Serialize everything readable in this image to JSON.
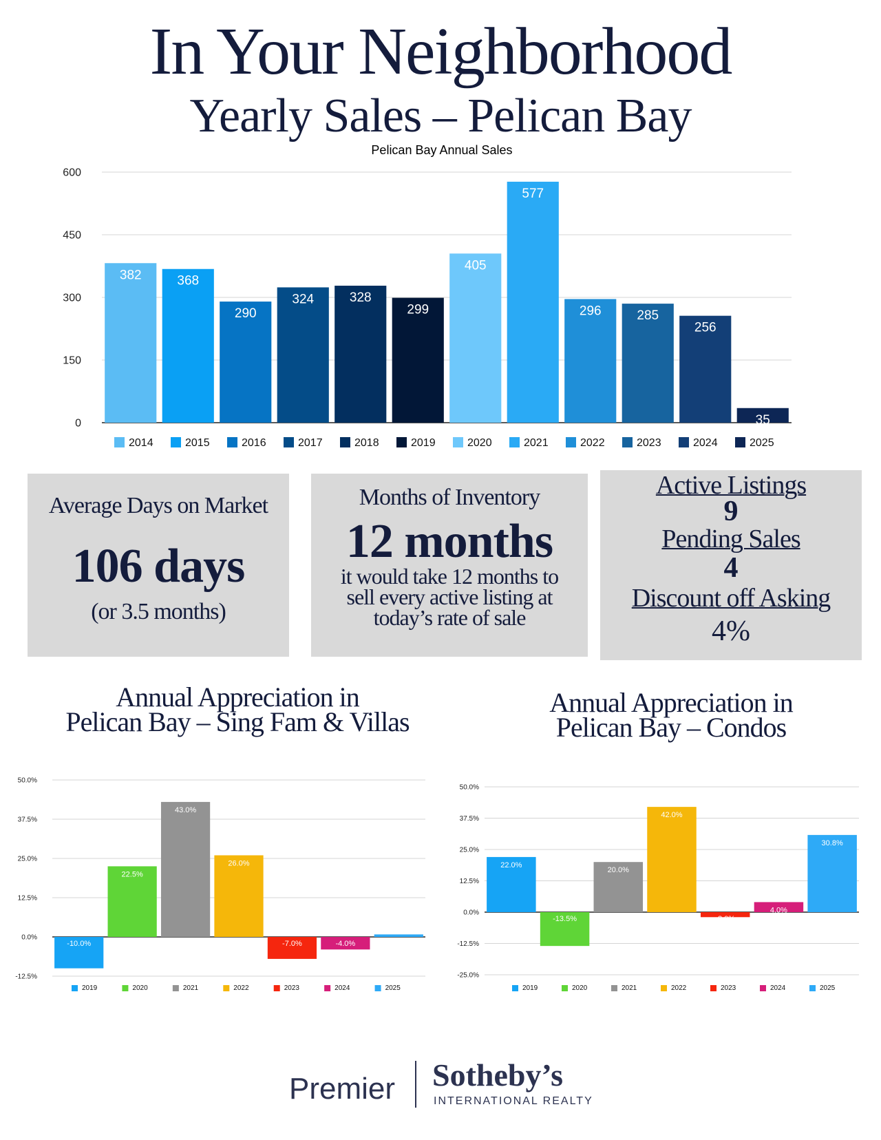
{
  "header": {
    "title": "In Your Neighborhood",
    "subtitle": "Yearly Sales – Pelican Bay"
  },
  "stats": {
    "dom": {
      "label": "Average Days on Market",
      "value": "106 days",
      "note": "(or 3.5 months)"
    },
    "inventory": {
      "label": "Months of Inventory",
      "value": "12 months",
      "note_lines": [
        "it would take 12 months to",
        "sell every active listing at",
        "today’s rate of sale"
      ]
    },
    "listings": {
      "active_label": "Active Listings",
      "active_value": "9",
      "pending_label": "Pending Sales",
      "pending_value": "4",
      "discount_label": "Discount off Asking",
      "discount_value": "4%"
    }
  },
  "appreciation_titles": {
    "left_lines": [
      "Annual Appreciation in",
      "Pelican Bay – Sing Fam & Villas"
    ],
    "right_lines": [
      "Annual Appreciation in",
      "Pelican Bay – Condos"
    ]
  },
  "logo": {
    "premier": "Premier",
    "brand": "Sotheby’s",
    "tagline": "INTERNATIONAL REALTY"
  },
  "chart_data": [
    {
      "type": "bar",
      "title": "Pelican Bay Annual Sales",
      "categories": [
        "2014",
        "2015",
        "2016",
        "2017",
        "2018",
        "2019",
        "2020",
        "2021",
        "2022",
        "2023",
        "2024",
        "2025"
      ],
      "values": [
        382,
        368,
        290,
        324,
        328,
        299,
        405,
        577,
        296,
        285,
        256,
        35
      ],
      "colors": [
        "#5bbcf4",
        "#0aa0f4",
        "#0674c4",
        "#044c88",
        "#032f5f",
        "#021737",
        "#6ec8fb",
        "#2aaaf5",
        "#1f8fd8",
        "#17649f",
        "#133f77",
        "#0d2655"
      ],
      "ylim": [
        0,
        600
      ],
      "yticks": [
        0,
        150,
        300,
        450,
        600
      ],
      "legend": "bottom",
      "grid": true
    },
    {
      "type": "bar",
      "categories": [
        "2019",
        "2020",
        "2021",
        "2022",
        "2023",
        "2024",
        "2025"
      ],
      "values": [
        -10.0,
        22.5,
        43.0,
        26.0,
        -7.0,
        -4.0,
        0.8
      ],
      "labels": [
        "-10.0%",
        "22.5%",
        "43.0%",
        "26.0%",
        "-7.0%",
        "-4.0%",
        ""
      ],
      "colors": [
        "#16a4f5",
        "#5fd537",
        "#939393",
        "#f5b70a",
        "#f5260e",
        "#d61e7a",
        "#2eaaf7"
      ],
      "ylim": [
        -12.5,
        50
      ],
      "yticks": [
        -12.5,
        0,
        12.5,
        25,
        37.5,
        50
      ],
      "ytick_labels": [
        "-12.5%",
        "0.0%",
        "12.5%",
        "25.0%",
        "37.5%",
        "50.0%"
      ],
      "legend": "bottom",
      "grid": true
    },
    {
      "type": "bar",
      "categories": [
        "2019",
        "2020",
        "2021",
        "2022",
        "2023",
        "2024",
        "2025"
      ],
      "values": [
        22.0,
        -13.5,
        20.0,
        42.0,
        -2.0,
        4.0,
        30.8
      ],
      "labels": [
        "22.0%",
        "-13.5%",
        "20.0%",
        "42.0%",
        "-2.0%",
        "4.0%",
        "30.8%"
      ],
      "colors": [
        "#16a4f5",
        "#5fd537",
        "#939393",
        "#f5b70a",
        "#f5260e",
        "#d61e7a",
        "#2eaaf7"
      ],
      "ylim": [
        -25,
        50
      ],
      "yticks": [
        -25,
        -12.5,
        0,
        12.5,
        25,
        37.5,
        50
      ],
      "ytick_labels": [
        "-25.0%",
        "-12.5%",
        "0.0%",
        "12.5%",
        "25.0%",
        "37.5%",
        "50.0%"
      ],
      "legend": "bottom",
      "grid": true
    }
  ]
}
